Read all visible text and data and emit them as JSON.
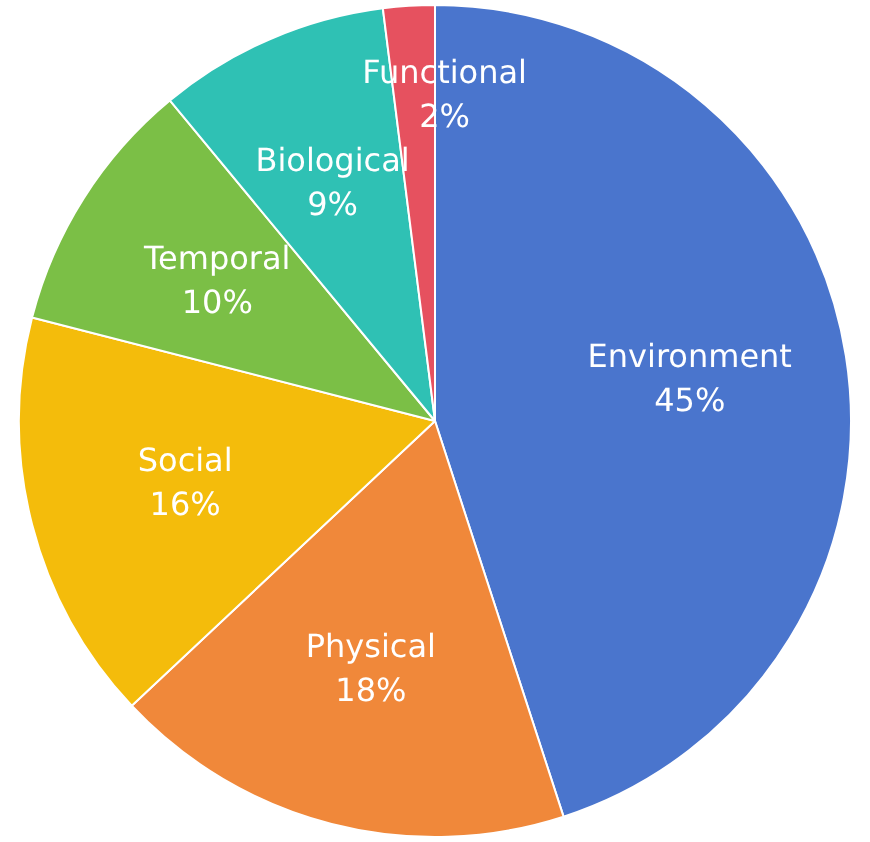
{
  "chart_data": {
    "type": "pie",
    "categories": [
      "Environment",
      "Physical",
      "Social",
      "Temporal",
      "Biological",
      "Functional"
    ],
    "values": [
      45,
      18,
      16,
      10,
      9,
      2
    ],
    "value_labels": [
      "45%",
      "18%",
      "16%",
      "10%",
      "9%",
      "2%"
    ],
    "colors": [
      "#4a75cd",
      "#f0883a",
      "#f4bc0b",
      "#7bbf46",
      "#2fc1b4",
      "#e6515f"
    ],
    "legend": false
  }
}
